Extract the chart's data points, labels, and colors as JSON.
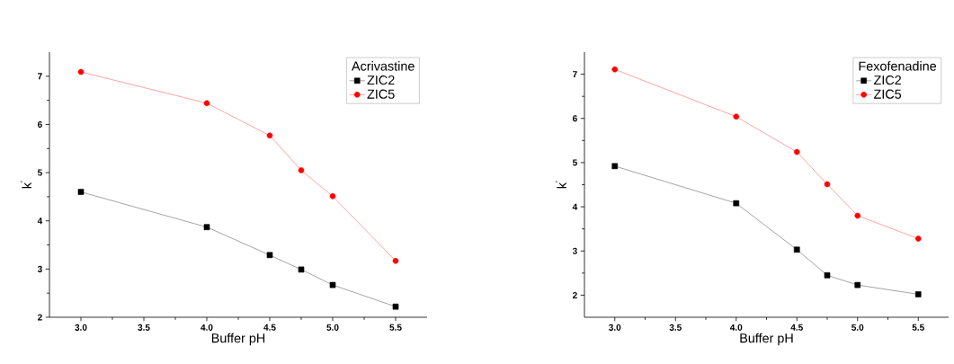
{
  "chart_data": [
    {
      "type": "line",
      "legend_title": "Acrivastine",
      "xlabel": "Buffer pH",
      "ylabel": "k$^{'}$",
      "x": [
        3.0,
        4.0,
        4.5,
        4.75,
        5.0,
        5.5
      ],
      "xlim": [
        2.75,
        5.75
      ],
      "ylim": [
        2,
        7.5
      ],
      "xticks": [
        {
          "value": 3,
          "label": "3.0"
        },
        3.5,
        {
          "value": 4,
          "label": "4.0"
        },
        4.5,
        {
          "value": 5,
          "label": "5.0"
        },
        5.5
      ],
      "yticks": [
        2,
        3,
        4,
        5,
        6,
        7
      ],
      "legend": "top right",
      "grid": false,
      "series": [
        {
          "name": "ZIC2",
          "color": "#000000",
          "marker": "square",
          "values": [
            4.6,
            3.87,
            3.29,
            2.99,
            2.67,
            2.22
          ]
        },
        {
          "name": "ZIC5",
          "color": "#ff0000",
          "marker": "circle",
          "values": [
            7.09,
            6.44,
            5.77,
            5.05,
            4.51,
            3.17
          ]
        }
      ]
    },
    {
      "type": "line",
      "legend_title": "Fexofenadine",
      "xlabel": "Buffer pH",
      "ylabel": "k$^{'}$",
      "x": [
        3.0,
        4.0,
        4.5,
        4.75,
        5.0,
        5.5
      ],
      "xlim": [
        2.75,
        5.75
      ],
      "ylim": [
        1.5,
        7.5
      ],
      "xticks": [
        {
          "value": 3,
          "label": "3.0"
        },
        3.5,
        {
          "value": 4,
          "label": "4.0"
        },
        4.5,
        {
          "value": 5,
          "label": "5.0"
        },
        5.5
      ],
      "yticks": [
        2,
        3,
        4,
        5,
        6,
        7
      ],
      "legend": "top right",
      "grid": false,
      "series": [
        {
          "name": "ZIC2",
          "color": "#000000",
          "marker": "square",
          "values": [
            4.92,
            4.08,
            3.03,
            2.45,
            2.23,
            2.02
          ]
        },
        {
          "name": "ZIC5",
          "color": "#ff0000",
          "marker": "circle",
          "values": [
            7.11,
            6.04,
            5.24,
            4.51,
            3.8,
            3.28
          ]
        }
      ]
    }
  ]
}
